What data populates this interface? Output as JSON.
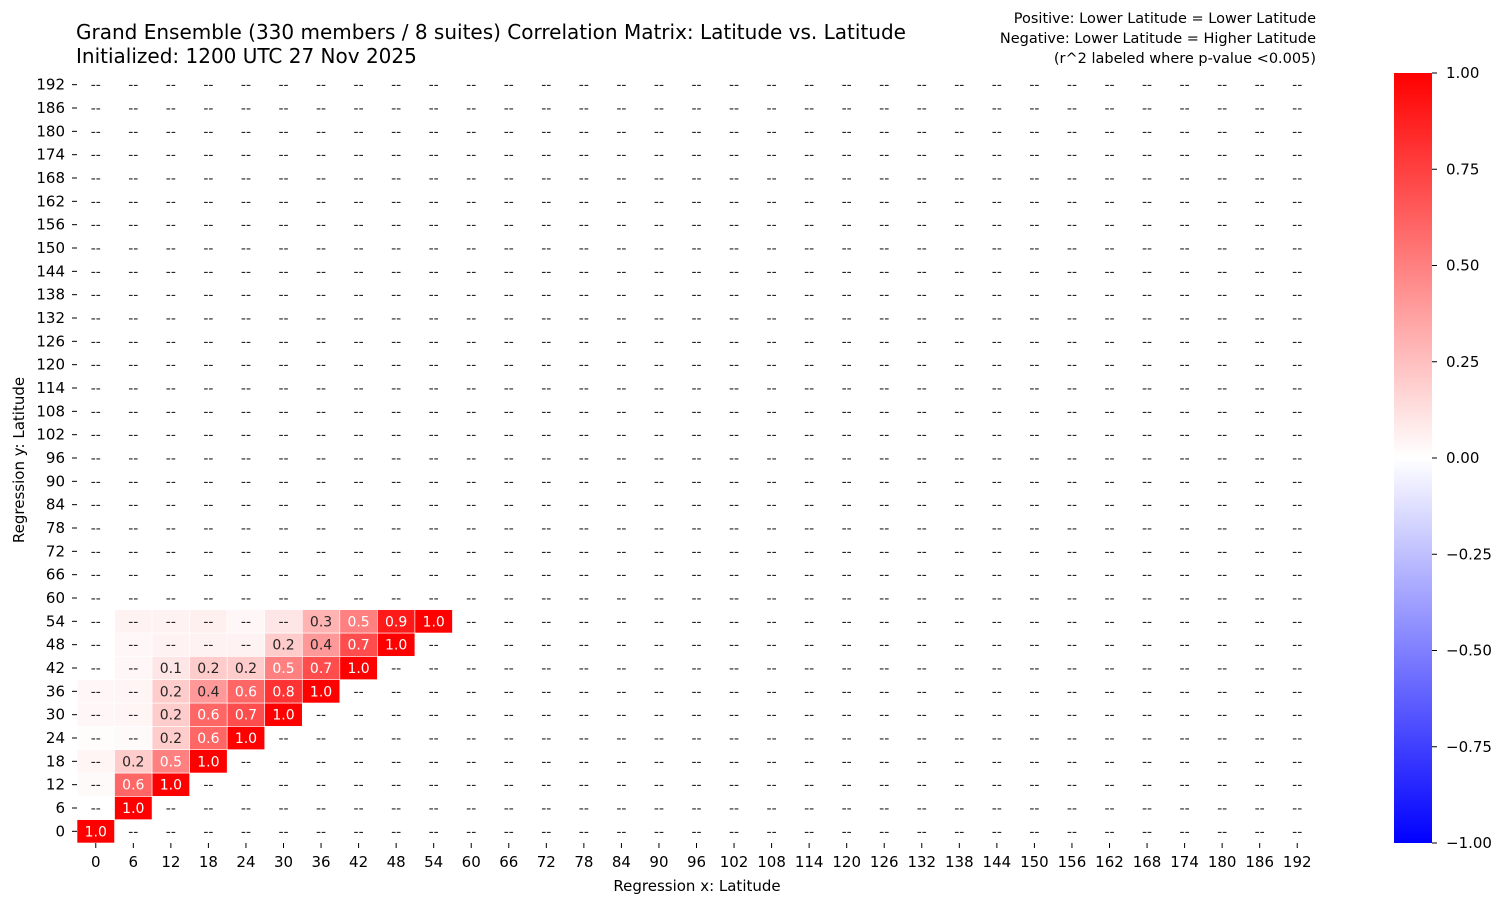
{
  "title_line1": "Grand Ensemble (330 members / 8 suites) Correlation Matrix: Latitude vs. Latitude",
  "title_line2": "Initialized: 1200 UTC 27 Nov 2025",
  "note_line1": "Positive: Lower Latitude = Lower Latitude",
  "note_line2": "Negative: Lower Latitude = Higher Latitude",
  "note_line3": "(r^2 labeled where p-value <0.005)",
  "chart_data": {
    "type": "heatmap",
    "xlabel": "Regression x: Latitude",
    "ylabel": "Regression y: Latitude",
    "x_categories": [
      "0",
      "6",
      "12",
      "18",
      "24",
      "30",
      "36",
      "42",
      "48",
      "54",
      "60",
      "66",
      "72",
      "78",
      "84",
      "90",
      "96",
      "102",
      "108",
      "114",
      "120",
      "126",
      "132",
      "138",
      "144",
      "150",
      "156",
      "162",
      "168",
      "174",
      "180",
      "186",
      "192"
    ],
    "y_categories": [
      "0",
      "6",
      "12",
      "18",
      "24",
      "30",
      "36",
      "42",
      "48",
      "54",
      "60",
      "66",
      "72",
      "78",
      "84",
      "90",
      "96",
      "102",
      "108",
      "114",
      "120",
      "126",
      "132",
      "138",
      "144",
      "150",
      "156",
      "162",
      "168",
      "174",
      "180",
      "186",
      "192"
    ],
    "missing_label": "--",
    "colorbar": {
      "range": [
        -1.0,
        1.0
      ],
      "ticks": [
        "1.00",
        "0.75",
        "0.50",
        "0.25",
        "0.00",
        "−0.25",
        "−0.50",
        "−0.75",
        "−1.00"
      ],
      "colors": {
        "negative": "#0000ff",
        "zero": "#ffffff",
        "positive": "#ff0000"
      }
    },
    "cells": [
      {
        "x": "0",
        "y": "0",
        "value": 1.0,
        "label": "1.0"
      },
      {
        "x": "0",
        "y": "12",
        "value": 0.02,
        "label": "--"
      },
      {
        "x": "0",
        "y": "18",
        "value": 0.04,
        "label": "--"
      },
      {
        "x": "0",
        "y": "24",
        "value": 0.01,
        "label": "--"
      },
      {
        "x": "0",
        "y": "30",
        "value": 0.03,
        "label": "--"
      },
      {
        "x": "0",
        "y": "36",
        "value": 0.03,
        "label": "--"
      },
      {
        "x": "6",
        "y": "6",
        "value": 1.0,
        "label": "1.0"
      },
      {
        "x": "6",
        "y": "12",
        "value": 0.6,
        "label": "0.6"
      },
      {
        "x": "6",
        "y": "18",
        "value": 0.2,
        "label": "0.2"
      },
      {
        "x": "6",
        "y": "24",
        "value": 0.02,
        "label": "--"
      },
      {
        "x": "6",
        "y": "30",
        "value": 0.04,
        "label": "--"
      },
      {
        "x": "6",
        "y": "36",
        "value": 0.04,
        "label": "--"
      },
      {
        "x": "6",
        "y": "42",
        "value": 0.03,
        "label": "--"
      },
      {
        "x": "6",
        "y": "48",
        "value": 0.03,
        "label": "--"
      },
      {
        "x": "6",
        "y": "54",
        "value": 0.05,
        "label": "--"
      },
      {
        "x": "12",
        "y": "12",
        "value": 1.0,
        "label": "1.0"
      },
      {
        "x": "12",
        "y": "18",
        "value": 0.5,
        "label": "0.5"
      },
      {
        "x": "12",
        "y": "24",
        "value": 0.2,
        "label": "0.2"
      },
      {
        "x": "12",
        "y": "30",
        "value": 0.2,
        "label": "0.2"
      },
      {
        "x": "12",
        "y": "36",
        "value": 0.2,
        "label": "0.2"
      },
      {
        "x": "12",
        "y": "42",
        "value": 0.1,
        "label": "0.1"
      },
      {
        "x": "12",
        "y": "48",
        "value": 0.05,
        "label": "--"
      },
      {
        "x": "12",
        "y": "54",
        "value": 0.05,
        "label": "--"
      },
      {
        "x": "18",
        "y": "18",
        "value": 1.0,
        "label": "1.0"
      },
      {
        "x": "18",
        "y": "24",
        "value": 0.6,
        "label": "0.6"
      },
      {
        "x": "18",
        "y": "30",
        "value": 0.6,
        "label": "0.6"
      },
      {
        "x": "18",
        "y": "36",
        "value": 0.4,
        "label": "0.4"
      },
      {
        "x": "18",
        "y": "42",
        "value": 0.2,
        "label": "0.2"
      },
      {
        "x": "18",
        "y": "48",
        "value": 0.05,
        "label": "--"
      },
      {
        "x": "18",
        "y": "54",
        "value": 0.06,
        "label": "--"
      },
      {
        "x": "24",
        "y": "24",
        "value": 1.0,
        "label": "1.0"
      },
      {
        "x": "24",
        "y": "30",
        "value": 0.7,
        "label": "0.7"
      },
      {
        "x": "24",
        "y": "36",
        "value": 0.6,
        "label": "0.6"
      },
      {
        "x": "24",
        "y": "42",
        "value": 0.2,
        "label": "0.2"
      },
      {
        "x": "24",
        "y": "48",
        "value": 0.05,
        "label": "--"
      },
      {
        "x": "24",
        "y": "54",
        "value": 0.03,
        "label": "--"
      },
      {
        "x": "30",
        "y": "30",
        "value": 1.0,
        "label": "1.0"
      },
      {
        "x": "30",
        "y": "36",
        "value": 0.8,
        "label": "0.8"
      },
      {
        "x": "30",
        "y": "42",
        "value": 0.5,
        "label": "0.5"
      },
      {
        "x": "30",
        "y": "48",
        "value": 0.2,
        "label": "0.2"
      },
      {
        "x": "30",
        "y": "54",
        "value": 0.1,
        "label": "--"
      },
      {
        "x": "36",
        "y": "36",
        "value": 1.0,
        "label": "1.0"
      },
      {
        "x": "36",
        "y": "42",
        "value": 0.7,
        "label": "0.7"
      },
      {
        "x": "36",
        "y": "48",
        "value": 0.4,
        "label": "0.4"
      },
      {
        "x": "36",
        "y": "54",
        "value": 0.3,
        "label": "0.3"
      },
      {
        "x": "42",
        "y": "42",
        "value": 1.0,
        "label": "1.0"
      },
      {
        "x": "42",
        "y": "48",
        "value": 0.7,
        "label": "0.7"
      },
      {
        "x": "42",
        "y": "54",
        "value": 0.5,
        "label": "0.5"
      },
      {
        "x": "48",
        "y": "48",
        "value": 1.0,
        "label": "1.0"
      },
      {
        "x": "48",
        "y": "54",
        "value": 0.9,
        "label": "0.9"
      },
      {
        "x": "54",
        "y": "54",
        "value": 1.0,
        "label": "1.0"
      }
    ]
  }
}
